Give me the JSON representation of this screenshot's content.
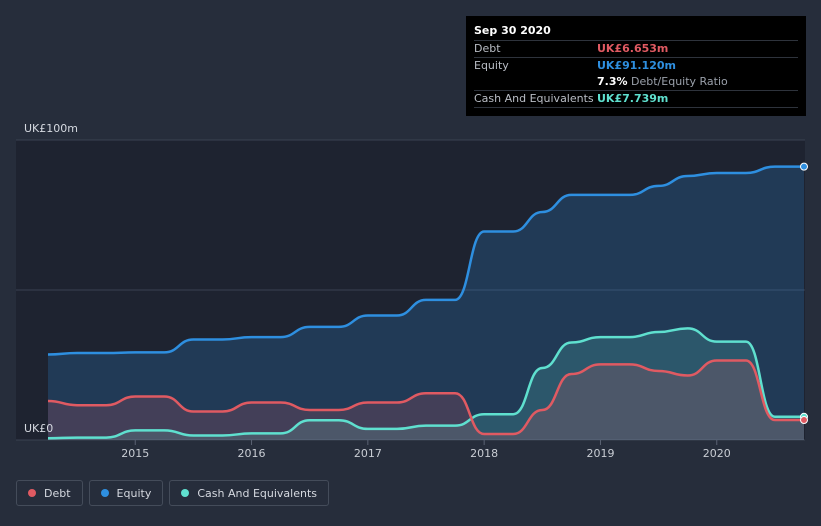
{
  "chart_data": {
    "type": "area",
    "y_unit_label_top": "UK£100m",
    "y_unit_label_bottom": "UK£0",
    "ylim": [
      0,
      100
    ],
    "xlim": [
      2014.25,
      2020.75
    ],
    "x_ticks": [
      2015,
      2016,
      2017,
      2018,
      2019,
      2020
    ],
    "x_tick_labels": [
      "2015",
      "2016",
      "2017",
      "2018",
      "2019",
      "2020"
    ],
    "grid": true,
    "series": [
      {
        "name": "Debt",
        "color": "#e05a62",
        "points": [
          [
            2014.25,
            13.0
          ],
          [
            2014.5,
            11.6
          ],
          [
            2014.75,
            11.6
          ],
          [
            2015.0,
            14.5
          ],
          [
            2015.25,
            14.5
          ],
          [
            2015.5,
            9.5
          ],
          [
            2015.75,
            9.5
          ],
          [
            2016.0,
            12.5
          ],
          [
            2016.25,
            12.5
          ],
          [
            2016.5,
            10.0
          ],
          [
            2016.75,
            10.0
          ],
          [
            2017.0,
            12.5
          ],
          [
            2017.25,
            12.5
          ],
          [
            2017.5,
            15.6
          ],
          [
            2017.75,
            15.6
          ],
          [
            2018.0,
            2.0
          ],
          [
            2018.25,
            2.0
          ],
          [
            2018.5,
            10.0
          ],
          [
            2018.75,
            22.0
          ],
          [
            2019.0,
            25.2
          ],
          [
            2019.25,
            25.2
          ],
          [
            2019.5,
            23.0
          ],
          [
            2019.75,
            21.5
          ],
          [
            2020.0,
            26.5
          ],
          [
            2020.25,
            26.5
          ],
          [
            2020.5,
            6.653
          ],
          [
            2020.75,
            6.653
          ]
        ]
      },
      {
        "name": "Equity",
        "color": "#2e8fe0",
        "points": [
          [
            2014.25,
            28.5
          ],
          [
            2014.5,
            29.0
          ],
          [
            2014.75,
            29.0
          ],
          [
            2015.0,
            29.2
          ],
          [
            2015.25,
            29.2
          ],
          [
            2015.5,
            33.5
          ],
          [
            2015.75,
            33.5
          ],
          [
            2016.0,
            34.3
          ],
          [
            2016.25,
            34.3
          ],
          [
            2016.5,
            37.7
          ],
          [
            2016.75,
            37.7
          ],
          [
            2017.0,
            41.5
          ],
          [
            2017.25,
            41.5
          ],
          [
            2017.5,
            46.7
          ],
          [
            2017.75,
            46.7
          ],
          [
            2018.0,
            69.5
          ],
          [
            2018.25,
            69.5
          ],
          [
            2018.5,
            76.0
          ],
          [
            2018.75,
            81.7
          ],
          [
            2019.0,
            81.7
          ],
          [
            2019.25,
            81.7
          ],
          [
            2019.5,
            84.7
          ],
          [
            2019.75,
            88.0
          ],
          [
            2020.0,
            89.0
          ],
          [
            2020.25,
            89.0
          ],
          [
            2020.5,
            91.12
          ],
          [
            2020.75,
            91.12
          ]
        ]
      },
      {
        "name": "Cash And Equivalents",
        "color": "#5fe0cf",
        "points": [
          [
            2014.25,
            0.6
          ],
          [
            2014.5,
            0.8
          ],
          [
            2014.75,
            0.8
          ],
          [
            2015.0,
            3.2
          ],
          [
            2015.25,
            3.2
          ],
          [
            2015.5,
            1.5
          ],
          [
            2015.75,
            1.5
          ],
          [
            2016.0,
            2.2
          ],
          [
            2016.25,
            2.2
          ],
          [
            2016.5,
            6.6
          ],
          [
            2016.75,
            6.6
          ],
          [
            2017.0,
            3.7
          ],
          [
            2017.25,
            3.7
          ],
          [
            2017.5,
            4.8
          ],
          [
            2017.75,
            4.8
          ],
          [
            2018.0,
            8.6
          ],
          [
            2018.25,
            8.6
          ],
          [
            2018.5,
            24.0
          ],
          [
            2018.75,
            32.5
          ],
          [
            2019.0,
            34.3
          ],
          [
            2019.25,
            34.3
          ],
          [
            2019.5,
            36.0
          ],
          [
            2019.75,
            37.2
          ],
          [
            2020.0,
            32.8
          ],
          [
            2020.25,
            32.8
          ],
          [
            2020.5,
            7.739
          ],
          [
            2020.75,
            7.739
          ]
        ]
      }
    ]
  },
  "tooltip": {
    "date": "Sep 30 2020",
    "debt_label": "Debt",
    "debt_value": "UK£6.653m",
    "equity_label": "Equity",
    "equity_value": "UK£91.120m",
    "ratio_value": "7.3%",
    "ratio_label": "Debt/Equity Ratio",
    "cash_label": "Cash And Equivalents",
    "cash_value": "UK£7.739m"
  },
  "legend": {
    "debt": "Debt",
    "equity": "Equity",
    "cash": "Cash And Equivalents"
  },
  "colors": {
    "background": "#262d3b",
    "plot_bg": "#1e2330",
    "debt": "#e05a62",
    "equity": "#2e8fe0",
    "cash": "#5fe0cf"
  }
}
